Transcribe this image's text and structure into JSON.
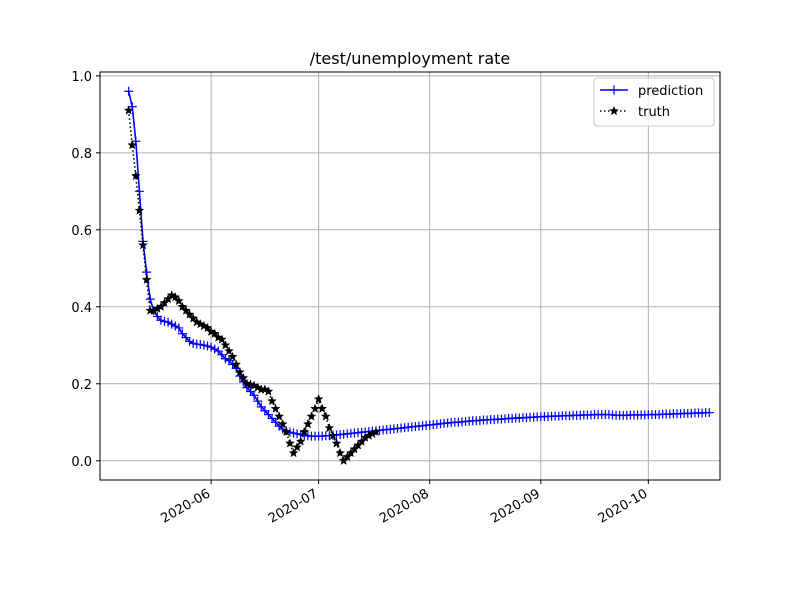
{
  "chart_data": {
    "type": "line",
    "title": "/test/unemployment rate",
    "xlabel": "",
    "ylabel": "",
    "x_type": "date",
    "xlim": [
      "2020-05-01",
      "2020-10-21"
    ],
    "ylim": [
      -0.05,
      1.01
    ],
    "grid": true,
    "legend_position": "top-right",
    "x_ticks": [
      {
        "date": "2020-06-01",
        "label": "2020-06"
      },
      {
        "date": "2020-07-01",
        "label": "2020-07"
      },
      {
        "date": "2020-08-01",
        "label": "2020-08"
      },
      {
        "date": "2020-09-01",
        "label": "2020-09"
      },
      {
        "date": "2020-10-01",
        "label": "2020-10"
      }
    ],
    "y_ticks": [
      {
        "value": 0.0,
        "label": "0.0"
      },
      {
        "value": 0.2,
        "label": "0.2"
      },
      {
        "value": 0.4,
        "label": "0.4"
      },
      {
        "value": 0.6,
        "label": "0.6"
      },
      {
        "value": 0.8,
        "label": "0.8"
      },
      {
        "value": 1.0,
        "label": "1.0"
      }
    ],
    "series": [
      {
        "name": "prediction",
        "color": "#0000ff",
        "line_style": "solid",
        "marker": "plus",
        "x": [
          "2020-05-09",
          "2020-05-10",
          "2020-05-11",
          "2020-05-12",
          "2020-05-13",
          "2020-05-14",
          "2020-05-15",
          "2020-05-16",
          "2020-05-17",
          "2020-05-18",
          "2020-05-19",
          "2020-05-20",
          "2020-05-21",
          "2020-05-22",
          "2020-05-23",
          "2020-05-24",
          "2020-05-25",
          "2020-05-26",
          "2020-05-27",
          "2020-05-28",
          "2020-05-29",
          "2020-05-30",
          "2020-05-31",
          "2020-06-01",
          "2020-06-02",
          "2020-06-03",
          "2020-06-04",
          "2020-06-05",
          "2020-06-06",
          "2020-06-07",
          "2020-06-08",
          "2020-06-09",
          "2020-06-10",
          "2020-06-11",
          "2020-06-12",
          "2020-06-13",
          "2020-06-14",
          "2020-06-15",
          "2020-06-16",
          "2020-06-17",
          "2020-06-18",
          "2020-06-19",
          "2020-06-20",
          "2020-06-21",
          "2020-06-22",
          "2020-06-23",
          "2020-06-24",
          "2020-06-25",
          "2020-06-26",
          "2020-06-27",
          "2020-06-28",
          "2020-06-29",
          "2020-06-30",
          "2020-07-01",
          "2020-07-02",
          "2020-07-03",
          "2020-07-04",
          "2020-07-05",
          "2020-07-06",
          "2020-07-07",
          "2020-07-08",
          "2020-07-09",
          "2020-07-10",
          "2020-07-11",
          "2020-07-12",
          "2020-07-13",
          "2020-07-14",
          "2020-07-15",
          "2020-07-16",
          "2020-07-17",
          "2020-07-18",
          "2020-07-19",
          "2020-07-20",
          "2020-07-21",
          "2020-07-22",
          "2020-07-23",
          "2020-07-24",
          "2020-07-25",
          "2020-07-26",
          "2020-07-27",
          "2020-07-28",
          "2020-07-29",
          "2020-07-30",
          "2020-07-31",
          "2020-08-01",
          "2020-08-02",
          "2020-08-03",
          "2020-08-04",
          "2020-08-05",
          "2020-08-06",
          "2020-08-07",
          "2020-08-08",
          "2020-08-09",
          "2020-08-10",
          "2020-08-11",
          "2020-08-12",
          "2020-08-13",
          "2020-08-14",
          "2020-08-15",
          "2020-08-16",
          "2020-08-17",
          "2020-08-18",
          "2020-08-19",
          "2020-08-20",
          "2020-08-21",
          "2020-08-22",
          "2020-08-23",
          "2020-08-24",
          "2020-08-25",
          "2020-08-26",
          "2020-08-27",
          "2020-08-28",
          "2020-08-29",
          "2020-08-30",
          "2020-08-31",
          "2020-09-01",
          "2020-09-02",
          "2020-09-03",
          "2020-09-04",
          "2020-09-05",
          "2020-09-06",
          "2020-09-07",
          "2020-09-08",
          "2020-09-09",
          "2020-09-10",
          "2020-09-11",
          "2020-09-12",
          "2020-09-13",
          "2020-09-14",
          "2020-09-15",
          "2020-09-16",
          "2020-09-17",
          "2020-09-18",
          "2020-09-19",
          "2020-09-20",
          "2020-09-21",
          "2020-09-22",
          "2020-09-23",
          "2020-09-24",
          "2020-09-25",
          "2020-09-26",
          "2020-09-27",
          "2020-09-28",
          "2020-09-29",
          "2020-09-30",
          "2020-10-01",
          "2020-10-02",
          "2020-10-03",
          "2020-10-04",
          "2020-10-05",
          "2020-10-06",
          "2020-10-07",
          "2020-10-08",
          "2020-10-09",
          "2020-10-10",
          "2020-10-11",
          "2020-10-12",
          "2020-10-13",
          "2020-10-14",
          "2020-10-15",
          "2020-10-16",
          "2020-10-17",
          "2020-10-18"
        ],
        "values": [
          0.96,
          0.92,
          0.83,
          0.7,
          0.57,
          0.49,
          0.42,
          0.39,
          0.375,
          0.365,
          0.362,
          0.36,
          0.355,
          0.35,
          0.345,
          0.33,
          0.32,
          0.31,
          0.305,
          0.303,
          0.302,
          0.3,
          0.298,
          0.295,
          0.29,
          0.285,
          0.275,
          0.265,
          0.26,
          0.25,
          0.24,
          0.22,
          0.205,
          0.19,
          0.18,
          0.17,
          0.155,
          0.14,
          0.13,
          0.12,
          0.11,
          0.1,
          0.09,
          0.082,
          0.078,
          0.074,
          0.072,
          0.07,
          0.068,
          0.066,
          0.065,
          0.064,
          0.064,
          0.064,
          0.064,
          0.065,
          0.065,
          0.066,
          0.067,
          0.068,
          0.069,
          0.07,
          0.071,
          0.072,
          0.073,
          0.074,
          0.075,
          0.076,
          0.077,
          0.078,
          0.079,
          0.08,
          0.081,
          0.082,
          0.083,
          0.084,
          0.085,
          0.086,
          0.087,
          0.088,
          0.089,
          0.09,
          0.091,
          0.092,
          0.093,
          0.094,
          0.095,
          0.096,
          0.097,
          0.098,
          0.099,
          0.1,
          0.1,
          0.101,
          0.102,
          0.103,
          0.104,
          0.104,
          0.105,
          0.106,
          0.106,
          0.107,
          0.107,
          0.108,
          0.108,
          0.109,
          0.11,
          0.11,
          0.111,
          0.111,
          0.112,
          0.112,
          0.113,
          0.113,
          0.114,
          0.114,
          0.115,
          0.115,
          0.116,
          0.116,
          0.116,
          0.117,
          0.117,
          0.117,
          0.118,
          0.118,
          0.118,
          0.119,
          0.119,
          0.119,
          0.12,
          0.12,
          0.12,
          0.12,
          0.12,
          0.119,
          0.118,
          0.118,
          0.118,
          0.118,
          0.119,
          0.119,
          0.119,
          0.119,
          0.119,
          0.12,
          0.12,
          0.12,
          0.12,
          0.121,
          0.121,
          0.121,
          0.122,
          0.122,
          0.122,
          0.123,
          0.123,
          0.123,
          0.124,
          0.124,
          0.124,
          0.125,
          0.125
        ]
      },
      {
        "name": "truth",
        "color": "#000000",
        "line_style": "dotted",
        "marker": "star",
        "x": [
          "2020-05-09",
          "2020-05-10",
          "2020-05-11",
          "2020-05-12",
          "2020-05-13",
          "2020-05-14",
          "2020-05-15",
          "2020-05-16",
          "2020-05-17",
          "2020-05-18",
          "2020-05-19",
          "2020-05-20",
          "2020-05-21",
          "2020-05-22",
          "2020-05-23",
          "2020-05-24",
          "2020-05-25",
          "2020-05-26",
          "2020-05-27",
          "2020-05-28",
          "2020-05-29",
          "2020-05-30",
          "2020-05-31",
          "2020-06-01",
          "2020-06-02",
          "2020-06-03",
          "2020-06-04",
          "2020-06-05",
          "2020-06-06",
          "2020-06-07",
          "2020-06-08",
          "2020-06-09",
          "2020-06-10",
          "2020-06-11",
          "2020-06-12",
          "2020-06-13",
          "2020-06-14",
          "2020-06-15",
          "2020-06-16",
          "2020-06-17",
          "2020-06-18",
          "2020-06-19",
          "2020-06-20",
          "2020-06-21",
          "2020-06-22",
          "2020-06-23",
          "2020-06-24",
          "2020-06-25",
          "2020-06-26",
          "2020-06-27",
          "2020-06-28",
          "2020-06-29",
          "2020-06-30",
          "2020-07-01",
          "2020-07-02",
          "2020-07-03",
          "2020-07-04",
          "2020-07-05",
          "2020-07-06",
          "2020-07-07",
          "2020-07-08",
          "2020-07-09",
          "2020-07-10",
          "2020-07-11",
          "2020-07-12",
          "2020-07-13",
          "2020-07-14",
          "2020-07-15",
          "2020-07-16",
          "2020-07-17"
        ],
        "values": [
          0.91,
          0.82,
          0.74,
          0.65,
          0.56,
          0.47,
          0.39,
          0.39,
          0.395,
          0.4,
          0.41,
          0.42,
          0.43,
          0.425,
          0.415,
          0.4,
          0.39,
          0.38,
          0.37,
          0.36,
          0.355,
          0.35,
          0.345,
          0.335,
          0.33,
          0.32,
          0.315,
          0.3,
          0.285,
          0.27,
          0.25,
          0.23,
          0.215,
          0.2,
          0.198,
          0.195,
          0.19,
          0.185,
          0.185,
          0.18,
          0.155,
          0.135,
          0.115,
          0.095,
          0.075,
          0.045,
          0.02,
          0.035,
          0.05,
          0.075,
          0.095,
          0.115,
          0.135,
          0.16,
          0.135,
          0.115,
          0.085,
          0.065,
          0.045,
          0.02,
          0.0,
          0.01,
          0.02,
          0.03,
          0.04,
          0.05,
          0.06,
          0.065,
          0.07,
          0.075
        ]
      }
    ]
  }
}
